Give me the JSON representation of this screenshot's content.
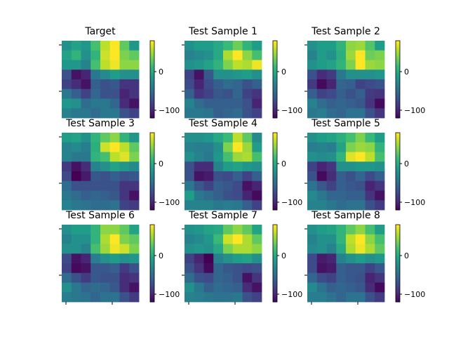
{
  "chart_data": {
    "type": "heatmap",
    "colormap": "viridis",
    "grid": false,
    "vmin": -120,
    "vmax": 80,
    "colorbar_ticks": [
      0,
      -100
    ],
    "colorbar_tick_labels": [
      "0",
      "−100"
    ],
    "panels": [
      {
        "title": "Target",
        "values": [
          [
            -20,
            -5,
            -15,
            20,
            60,
            80,
            30,
            -15
          ],
          [
            -5,
            10,
            -20,
            10,
            65,
            80,
            40,
            30
          ],
          [
            -15,
            -15,
            -30,
            20,
            60,
            75,
            45,
            45
          ],
          [
            -70,
            -110,
            -100,
            -40,
            -25,
            -10,
            -20,
            -20
          ],
          [
            -80,
            -95,
            -110,
            -60,
            -70,
            -65,
            -90,
            -90
          ],
          [
            -40,
            -60,
            -80,
            -55,
            -70,
            -70,
            -100,
            -90
          ],
          [
            -15,
            -20,
            -50,
            -40,
            -40,
            -55,
            -95,
            -110
          ],
          [
            -30,
            -40,
            -40,
            -50,
            -40,
            -40,
            -70,
            -80
          ]
        ]
      },
      {
        "title": "Test Sample 1",
        "values": [
          [
            -20,
            -10,
            -10,
            0,
            15,
            35,
            10,
            -10
          ],
          [
            -30,
            -25,
            -20,
            0,
            55,
            80,
            45,
            20
          ],
          [
            -20,
            -15,
            -5,
            10,
            40,
            60,
            55,
            75
          ],
          [
            -80,
            -110,
            -65,
            -20,
            -20,
            -15,
            -10,
            -20
          ],
          [
            -75,
            -100,
            -75,
            -60,
            -50,
            -55,
            -70,
            -60
          ],
          [
            -60,
            -90,
            -80,
            -65,
            -70,
            -55,
            -80,
            -90
          ],
          [
            -30,
            -50,
            -60,
            -60,
            -60,
            -60,
            -70,
            -100
          ],
          [
            -40,
            -40,
            -45,
            -60,
            -55,
            -50,
            -70,
            -80
          ]
        ]
      },
      {
        "title": "Test Sample 2",
        "values": [
          [
            -20,
            -10,
            -10,
            10,
            45,
            50,
            25,
            -10
          ],
          [
            -30,
            -10,
            -20,
            5,
            50,
            85,
            35,
            40
          ],
          [
            -20,
            -10,
            -5,
            10,
            40,
            80,
            50,
            45
          ],
          [
            -70,
            -95,
            -85,
            -40,
            -20,
            -20,
            -20,
            -15
          ],
          [
            -85,
            -115,
            -100,
            -55,
            -60,
            -80,
            -75,
            -70
          ],
          [
            -60,
            -80,
            -75,
            -60,
            -70,
            -60,
            -85,
            -90
          ],
          [
            -30,
            -50,
            -60,
            -55,
            -60,
            -65,
            -90,
            -115
          ],
          [
            -40,
            -35,
            -50,
            -55,
            -45,
            -45,
            -70,
            -90
          ]
        ]
      },
      {
        "title": "Test Sample 3",
        "values": [
          [
            -10,
            -5,
            -20,
            10,
            30,
            45,
            10,
            -15
          ],
          [
            -30,
            -25,
            -35,
            5,
            65,
            80,
            60,
            30
          ],
          [
            -30,
            -40,
            -40,
            10,
            20,
            60,
            70,
            40
          ],
          [
            -85,
            -110,
            -95,
            -30,
            -20,
            -5,
            -15,
            -25
          ],
          [
            -75,
            -120,
            -105,
            -65,
            -70,
            -60,
            -70,
            -65
          ],
          [
            -50,
            -70,
            -70,
            -70,
            -70,
            -70,
            -90,
            -90
          ],
          [
            -40,
            -50,
            -60,
            -55,
            -60,
            -65,
            -90,
            -110
          ],
          [
            -30,
            -40,
            -45,
            -50,
            -50,
            -45,
            -80,
            -85
          ]
        ]
      },
      {
        "title": "Test Sample 4",
        "values": [
          [
            -20,
            -20,
            -15,
            0,
            15,
            60,
            30,
            -25
          ],
          [
            -30,
            -35,
            -35,
            -20,
            40,
            80,
            50,
            -10
          ],
          [
            -20,
            -30,
            -40,
            -15,
            20,
            50,
            55,
            20
          ],
          [
            -70,
            -95,
            -95,
            -30,
            -10,
            -5,
            -15,
            -20
          ],
          [
            -70,
            -110,
            -105,
            -70,
            -75,
            -60,
            -80,
            -60
          ],
          [
            -40,
            -65,
            -80,
            -60,
            -65,
            -75,
            -110,
            -100
          ],
          [
            -10,
            -40,
            -50,
            -60,
            -70,
            -75,
            -100,
            -115
          ],
          [
            -30,
            -30,
            -30,
            -40,
            -35,
            -40,
            -60,
            -80
          ]
        ]
      },
      {
        "title": "Test Sample 5",
        "values": [
          [
            -20,
            -10,
            -5,
            5,
            20,
            40,
            15,
            -10
          ],
          [
            -35,
            -30,
            -35,
            -5,
            40,
            50,
            45,
            10
          ],
          [
            -20,
            -25,
            -20,
            10,
            70,
            85,
            60,
            20
          ],
          [
            -80,
            -100,
            -90,
            -20,
            -20,
            -15,
            -15,
            -20
          ],
          [
            -70,
            -115,
            -95,
            -60,
            -70,
            -55,
            -75,
            -60
          ],
          [
            -45,
            -65,
            -80,
            -60,
            -65,
            -70,
            -100,
            -90
          ],
          [
            -25,
            -40,
            -55,
            -55,
            -60,
            -60,
            -90,
            -110
          ],
          [
            -30,
            -30,
            -40,
            -50,
            -45,
            -45,
            -70,
            -85
          ]
        ]
      },
      {
        "title": "Test Sample 6",
        "values": [
          [
            -20,
            -10,
            -10,
            10,
            45,
            45,
            30,
            -5
          ],
          [
            -30,
            -20,
            -20,
            10,
            55,
            80,
            40,
            30
          ],
          [
            -20,
            -20,
            -30,
            20,
            50,
            75,
            65,
            40
          ],
          [
            -75,
            -110,
            -100,
            -35,
            -20,
            -10,
            -20,
            -15
          ],
          [
            -80,
            -115,
            -110,
            -65,
            -65,
            -60,
            -85,
            -70
          ],
          [
            -50,
            -70,
            -85,
            -65,
            -70,
            -70,
            -95,
            -90
          ],
          [
            -20,
            -40,
            -55,
            -50,
            -55,
            -65,
            -95,
            -110
          ],
          [
            -35,
            -40,
            -45,
            -55,
            -45,
            -45,
            -70,
            -85
          ]
        ]
      },
      {
        "title": "Test Sample 7",
        "values": [
          [
            -20,
            -15,
            -5,
            0,
            30,
            45,
            30,
            -5
          ],
          [
            -30,
            -25,
            -15,
            15,
            65,
            80,
            55,
            30
          ],
          [
            -20,
            -15,
            -20,
            0,
            40,
            55,
            55,
            45
          ],
          [
            -80,
            -100,
            -120,
            -30,
            -20,
            -10,
            -5,
            -20
          ],
          [
            -70,
            -90,
            -115,
            -55,
            -65,
            -70,
            -75,
            -70
          ],
          [
            -50,
            -70,
            -75,
            -55,
            -60,
            -70,
            -110,
            -90
          ],
          [
            -20,
            -40,
            -60,
            -50,
            -55,
            -60,
            -95,
            -110
          ],
          [
            -30,
            -35,
            -40,
            -45,
            -45,
            -40,
            -70,
            -80
          ]
        ]
      },
      {
        "title": "Test Sample 8",
        "values": [
          [
            -20,
            -10,
            -5,
            10,
            30,
            45,
            20,
            -10
          ],
          [
            -30,
            -20,
            -20,
            10,
            60,
            80,
            45,
            20
          ],
          [
            -25,
            -20,
            -30,
            0,
            55,
            75,
            55,
            30
          ],
          [
            -75,
            -105,
            -100,
            -30,
            -20,
            -10,
            -20,
            -15
          ],
          [
            -75,
            -110,
            -105,
            -60,
            -65,
            -65,
            -80,
            -65
          ],
          [
            -55,
            -75,
            -80,
            -60,
            -65,
            -70,
            -100,
            -90
          ],
          [
            -25,
            -45,
            -60,
            -55,
            -60,
            -65,
            -95,
            -115
          ],
          [
            -35,
            -35,
            -45,
            -55,
            -45,
            -45,
            -70,
            -85
          ]
        ]
      }
    ]
  }
}
